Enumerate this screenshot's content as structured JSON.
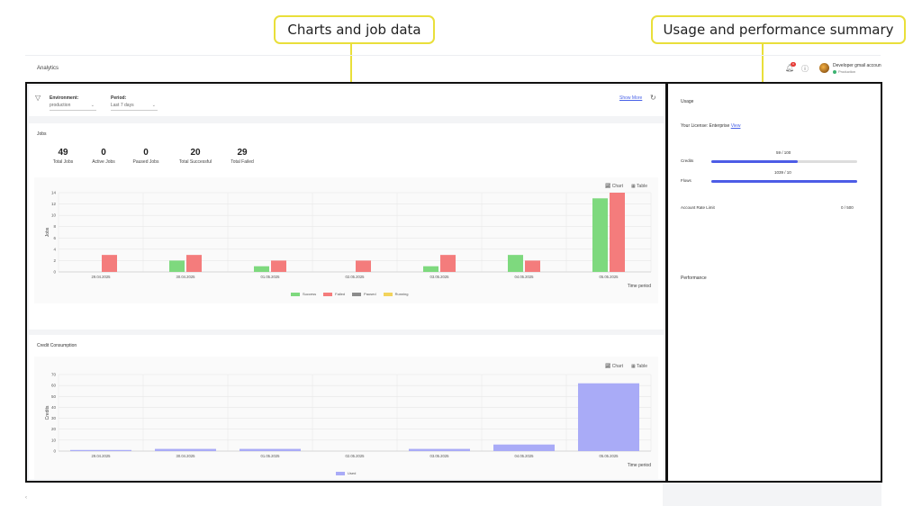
{
  "callouts": {
    "left": "Charts and job data",
    "right": "Usage and performance summary"
  },
  "header": {
    "title": "Analytics",
    "notification_count": "0",
    "account_name": "Developer gmail accoun",
    "account_env": "Production"
  },
  "filters": {
    "environment_label": "Environment:",
    "environment_value": "production",
    "period_label": "Period:",
    "period_value": "Last 7 days",
    "show_more": "Show More"
  },
  "jobs": {
    "title": "Jobs",
    "stats": [
      {
        "value": "49",
        "label": "Total Jobs"
      },
      {
        "value": "0",
        "label": "Active Jobs"
      },
      {
        "value": "0",
        "label": "Paused Jobs"
      },
      {
        "value": "20",
        "label": "Total Successful"
      },
      {
        "value": "29",
        "label": "Total Failed"
      }
    ],
    "chart_button": "Chart",
    "table_button": "Table"
  },
  "credit": {
    "title": "Credit Consumption",
    "chart_button": "Chart",
    "table_button": "Table"
  },
  "usage": {
    "title": "Usage",
    "license_text": "Your License: Enterprise",
    "license_link": "View",
    "credits_label": "Credits",
    "credits_value": "59 / 100",
    "credits_fraction": 0.59,
    "flows_label": "Flows",
    "flows_value": "1039 / 10",
    "flows_fraction": 1.0,
    "rate_limit_label": "Account Rate Limit",
    "rate_limit_value": "0 / 500"
  },
  "performance": {
    "title": "Performance"
  },
  "colors": {
    "success": "#7ed97e",
    "failed": "#f47c7c",
    "paused": "#8c8c8c",
    "running": "#f2d35c",
    "used": "#a9abf7",
    "accent": "#4d5ce6"
  },
  "chart_data": [
    {
      "type": "bar",
      "categories": [
        "29.04.2025",
        "30.04.2025",
        "01.05.2025",
        "02.05.2025",
        "03.05.2025",
        "04.05.2025",
        "05.05.2025"
      ],
      "series": [
        {
          "name": "Success",
          "values": [
            0,
            2,
            1,
            0,
            1,
            3,
            13
          ]
        },
        {
          "name": "Failed",
          "values": [
            3,
            3,
            2,
            2,
            3,
            2,
            14
          ]
        },
        {
          "name": "Paused",
          "values": [
            0,
            0,
            0,
            0,
            0,
            0,
            0
          ]
        },
        {
          "name": "Running",
          "values": [
            0,
            0,
            0,
            0,
            0,
            0,
            0
          ]
        }
      ],
      "xlabel": "Time period",
      "ylabel": "Jobs",
      "yticks": [
        0,
        2,
        4,
        6,
        8,
        10,
        12,
        14
      ],
      "ylim": [
        0,
        14
      ],
      "grid": true,
      "legend": "bottom"
    },
    {
      "type": "bar",
      "categories": [
        "29.04.2025",
        "30.04.2025",
        "01.05.2025",
        "02.05.2025",
        "03.05.2025",
        "04.05.2025",
        "05.05.2025"
      ],
      "series": [
        {
          "name": "Used",
          "values": [
            1,
            2,
            2,
            0,
            2,
            6,
            62
          ]
        }
      ],
      "xlabel": "Time period",
      "ylabel": "Credits",
      "yticks": [
        0,
        10,
        20,
        30,
        40,
        50,
        60,
        70
      ],
      "ylim": [
        0,
        70
      ],
      "grid": true,
      "legend": "bottom"
    }
  ]
}
